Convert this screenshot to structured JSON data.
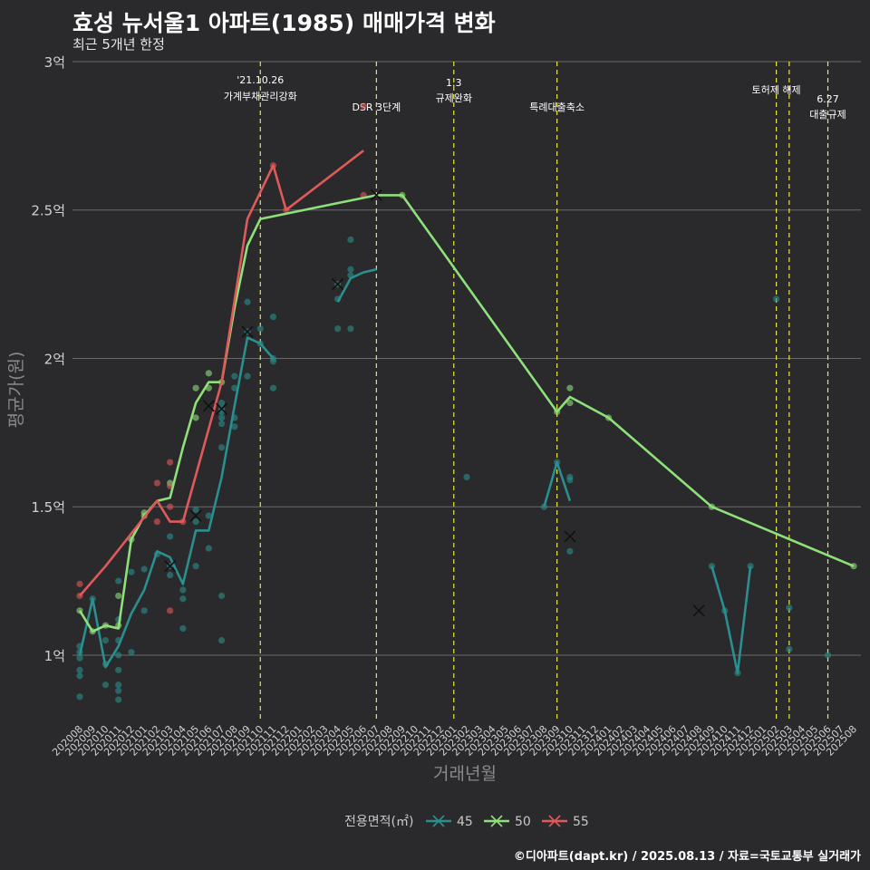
{
  "title": "효성 뉴서울1 아파트(1985) 매매가격 변화",
  "subtitle": "최근 5개년 한정",
  "caption": "©디아파트(dapt.kr) / 2025.08.13 / 자료=국토교통부 실거래가",
  "chart_data": {
    "type": "line",
    "xlabel": "거래년월",
    "ylabel": "평균가(원)",
    "ylim": [
      0.78,
      3.0
    ],
    "yticks": [
      1,
      1.5,
      2,
      2.5,
      3
    ],
    "ytick_labels": [
      "1억",
      "1.5억",
      "2억",
      "2.5억",
      "3억"
    ],
    "grid": true,
    "categories": [
      "202008",
      "202009",
      "202010",
      "202011",
      "202012",
      "202101",
      "202102",
      "202103",
      "202104",
      "202105",
      "202106",
      "202107",
      "202108",
      "202109",
      "202110",
      "202111",
      "202112",
      "202201",
      "202202",
      "202203",
      "202204",
      "202205",
      "202206",
      "202207",
      "202208",
      "202209",
      "202210",
      "202211",
      "202212",
      "202301",
      "202302",
      "202303",
      "202304",
      "202305",
      "202306",
      "202307",
      "202308",
      "202309",
      "202310",
      "202311",
      "202312",
      "202401",
      "202402",
      "202403",
      "202404",
      "202405",
      "202406",
      "202407",
      "202408",
      "202409",
      "202410",
      "202411",
      "202412",
      "202501",
      "202502",
      "202503",
      "202504",
      "202505",
      "202506",
      "202507",
      "202508"
    ],
    "events": [
      {
        "x": 14,
        "label1": "'21.10.26",
        "label2": "가계부채관리강화"
      },
      {
        "x": 23,
        "label1": "",
        "label2": "DSR 3단계"
      },
      {
        "x": 29,
        "label1": "1.3",
        "label2": "규제완화"
      },
      {
        "x": 37,
        "label1": "",
        "label2": "특례대출축소"
      },
      {
        "x": 54,
        "label1": "토허제 해제",
        "label2": ""
      },
      {
        "x": 55,
        "label1": "",
        "label2": ""
      },
      {
        "x": 58,
        "label1": "6.27",
        "label2": "대출규제"
      }
    ],
    "legend_title": "전용면적(㎡)",
    "legend_position": "bottom",
    "series": [
      {
        "name": "45",
        "color": "#2a8f8e",
        "lines": [
          [
            [
              0,
              1.0
            ],
            [
              1,
              1.19
            ],
            [
              2,
              0.96
            ],
            [
              3,
              1.03
            ],
            [
              4,
              1.14
            ],
            [
              5,
              1.22
            ],
            [
              6,
              1.35
            ],
            [
              7,
              1.33
            ],
            [
              8,
              1.24
            ],
            [
              9,
              1.42
            ],
            [
              10,
              1.42
            ],
            [
              11,
              1.6
            ],
            [
              12,
              1.84
            ],
            [
              13,
              2.07
            ],
            [
              14,
              2.05
            ],
            [
              15,
              2.0
            ]
          ],
          [
            [
              20,
              2.19
            ],
            [
              21,
              2.27
            ],
            [
              22,
              2.29
            ],
            [
              23,
              2.3
            ]
          ],
          [
            [
              36,
              1.5
            ],
            [
              37,
              1.65
            ],
            [
              38,
              1.52
            ]
          ],
          [
            [
              49,
              1.3
            ],
            [
              50,
              1.15
            ],
            [
              51,
              0.94
            ],
            [
              52,
              1.3
            ]
          ]
        ],
        "points": [
          [
            0,
            0.86
          ],
          [
            0,
            0.93
          ],
          [
            0,
            0.95
          ],
          [
            0,
            0.99
          ],
          [
            0,
            1.01
          ],
          [
            0,
            1.03
          ],
          [
            1,
            1.19
          ],
          [
            2,
            0.9
          ],
          [
            2,
            0.97
          ],
          [
            2,
            1.05
          ],
          [
            3,
            0.85
          ],
          [
            3,
            0.88
          ],
          [
            3,
            0.9
          ],
          [
            3,
            0.95
          ],
          [
            3,
            1.0
          ],
          [
            3,
            1.05
          ],
          [
            3,
            1.12
          ],
          [
            3,
            1.25
          ],
          [
            4,
            1.01
          ],
          [
            4,
            1.28
          ],
          [
            5,
            1.15
          ],
          [
            5,
            1.29
          ],
          [
            6,
            1.34
          ],
          [
            7,
            1.27
          ],
          [
            7,
            1.3
          ],
          [
            7,
            1.4
          ],
          [
            8,
            1.09
          ],
          [
            8,
            1.19
          ],
          [
            8,
            1.22
          ],
          [
            9,
            1.3
          ],
          [
            9,
            1.45
          ],
          [
            9,
            1.49
          ],
          [
            10,
            1.36
          ],
          [
            10,
            1.47
          ],
          [
            11,
            1.05
          ],
          [
            11,
            1.2
          ],
          [
            11,
            1.7
          ],
          [
            11,
            1.78
          ],
          [
            11,
            1.8
          ],
          [
            11,
            1.82
          ],
          [
            11,
            1.83
          ],
          [
            11,
            1.85
          ],
          [
            12,
            1.77
          ],
          [
            12,
            1.8
          ],
          [
            12,
            1.9
          ],
          [
            12,
            1.94
          ],
          [
            13,
            1.94
          ],
          [
            13,
            2.09
          ],
          [
            13,
            2.19
          ],
          [
            14,
            2.05
          ],
          [
            14,
            2.1
          ],
          [
            15,
            1.9
          ],
          [
            15,
            1.99
          ],
          [
            15,
            2.0
          ],
          [
            15,
            2.14
          ],
          [
            20,
            2.1
          ],
          [
            20,
            2.2
          ],
          [
            20,
            2.25
          ],
          [
            21,
            2.1
          ],
          [
            21,
            2.28
          ],
          [
            21,
            2.3
          ],
          [
            21,
            2.4
          ],
          [
            30,
            1.6
          ],
          [
            36,
            1.5
          ],
          [
            37,
            1.65
          ],
          [
            38,
            1.35
          ],
          [
            38,
            1.59
          ],
          [
            38,
            1.6
          ],
          [
            49,
            1.3
          ],
          [
            50,
            1.15
          ],
          [
            51,
            0.94
          ],
          [
            52,
            1.3
          ],
          [
            54,
            2.2
          ],
          [
            55,
            1.02
          ],
          [
            55,
            1.16
          ],
          [
            58,
            1.0
          ]
        ],
        "avg_marks": [
          [
            7,
            1.3
          ],
          [
            9,
            1.47
          ],
          [
            10,
            1.84
          ],
          [
            11,
            1.83
          ],
          [
            13,
            2.09
          ],
          [
            20,
            2.25
          ],
          [
            38,
            1.4
          ],
          [
            48,
            1.15
          ]
        ]
      },
      {
        "name": "50",
        "color": "#8ee07a",
        "lines": [
          [
            [
              0,
              1.15
            ],
            [
              1,
              1.08
            ],
            [
              2,
              1.1
            ],
            [
              3,
              1.09
            ],
            [
              4,
              1.39
            ],
            [
              5,
              1.47
            ],
            [
              6,
              1.52
            ],
            [
              7,
              1.53
            ],
            [
              8,
              1.7
            ],
            [
              9,
              1.85
            ],
            [
              10,
              1.92
            ],
            [
              11,
              1.92
            ],
            [
              12,
              2.17
            ],
            [
              13,
              2.38
            ],
            [
              14,
              2.47
            ],
            [
              23,
              2.55
            ],
            [
              25,
              2.55
            ],
            [
              37,
              1.82
            ],
            [
              38,
              1.87
            ],
            [
              41,
              1.8
            ],
            [
              49,
              1.5
            ],
            [
              60,
              1.3
            ]
          ]
        ],
        "points": [
          [
            0,
            1.15
          ],
          [
            1,
            1.08
          ],
          [
            2,
            1.1
          ],
          [
            3,
            1.1
          ],
          [
            3,
            1.2
          ],
          [
            4,
            1.39
          ],
          [
            5,
            1.47
          ],
          [
            5,
            1.48
          ],
          [
            7,
            1.58
          ],
          [
            9,
            1.8
          ],
          [
            9,
            1.9
          ],
          [
            10,
            1.9
          ],
          [
            10,
            1.95
          ],
          [
            11,
            1.92
          ],
          [
            25,
            2.55
          ],
          [
            37,
            1.82
          ],
          [
            38,
            1.85
          ],
          [
            38,
            1.9
          ],
          [
            41,
            1.8
          ],
          [
            49,
            1.5
          ],
          [
            60,
            1.3
          ]
        ],
        "avg_marks": [
          [
            23,
            2.55
          ]
        ]
      },
      {
        "name": "55",
        "color": "#e05a5a",
        "lines": [
          [
            [
              0,
              1.2
            ],
            [
              2,
              1.3
            ],
            [
              6,
              1.52
            ],
            [
              7,
              1.45
            ],
            [
              8,
              1.45
            ],
            [
              11,
              1.92
            ],
            [
              13,
              2.47
            ],
            [
              15,
              2.65
            ],
            [
              16,
              2.5
            ],
            [
              22,
              2.7
            ]
          ]
        ],
        "points": [
          [
            0,
            1.2
          ],
          [
            0,
            1.24
          ],
          [
            6,
            1.45
          ],
          [
            6,
            1.58
          ],
          [
            7,
            1.15
          ],
          [
            7,
            1.5
          ],
          [
            7,
            1.57
          ],
          [
            7,
            1.65
          ],
          [
            8,
            1.45
          ],
          [
            15,
            2.65
          ],
          [
            16,
            2.5
          ],
          [
            22,
            2.55
          ],
          [
            22,
            2.85
          ]
        ],
        "avg_marks": []
      }
    ]
  }
}
